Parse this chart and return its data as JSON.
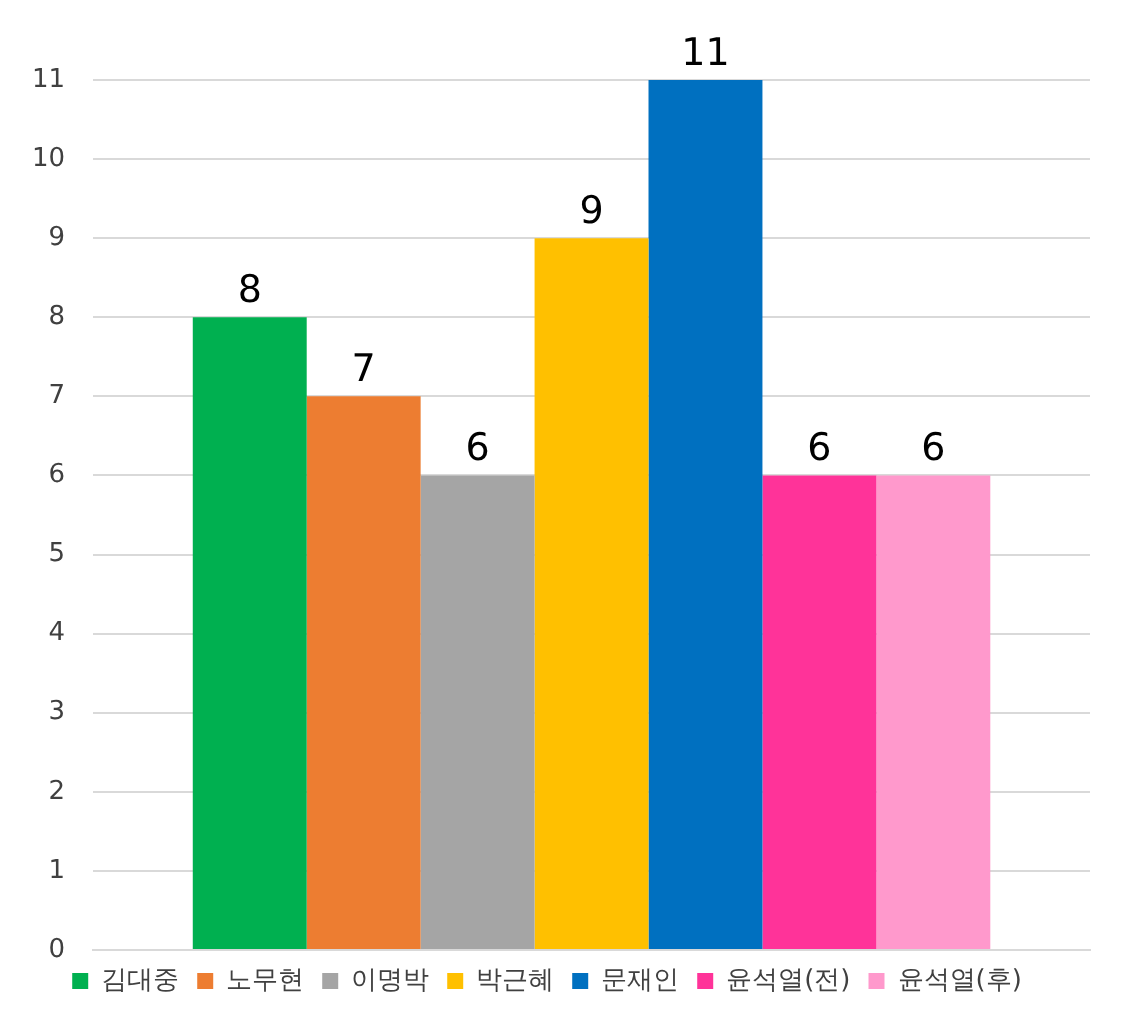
{
  "chart_data": {
    "type": "bar",
    "categories": [
      null
    ],
    "series": [
      {
        "name": "김대중",
        "color": "#00b050",
        "values": [
          8
        ]
      },
      {
        "name": "노무현",
        "color": "#ed7d31",
        "values": [
          7
        ]
      },
      {
        "name": "이명박",
        "color": "#a5a5a5",
        "values": [
          6
        ]
      },
      {
        "name": "박근혜",
        "color": "#ffc000",
        "values": [
          9
        ]
      },
      {
        "name": "문재인",
        "color": "#0070c0",
        "values": [
          11
        ]
      },
      {
        "name": "윤석열(전)",
        "color": "#ff3399",
        "values": [
          6
        ]
      },
      {
        "name": "윤석열(후)",
        "color": "#ff99cc",
        "values": [
          6
        ]
      }
    ],
    "ylim": [
      0,
      11
    ],
    "yticks": [
      0,
      1,
      2,
      3,
      4,
      5,
      6,
      7,
      8,
      9,
      10,
      11
    ],
    "grid": "y",
    "legend": "bottom",
    "data_labels": true,
    "tick_labels": "y"
  }
}
